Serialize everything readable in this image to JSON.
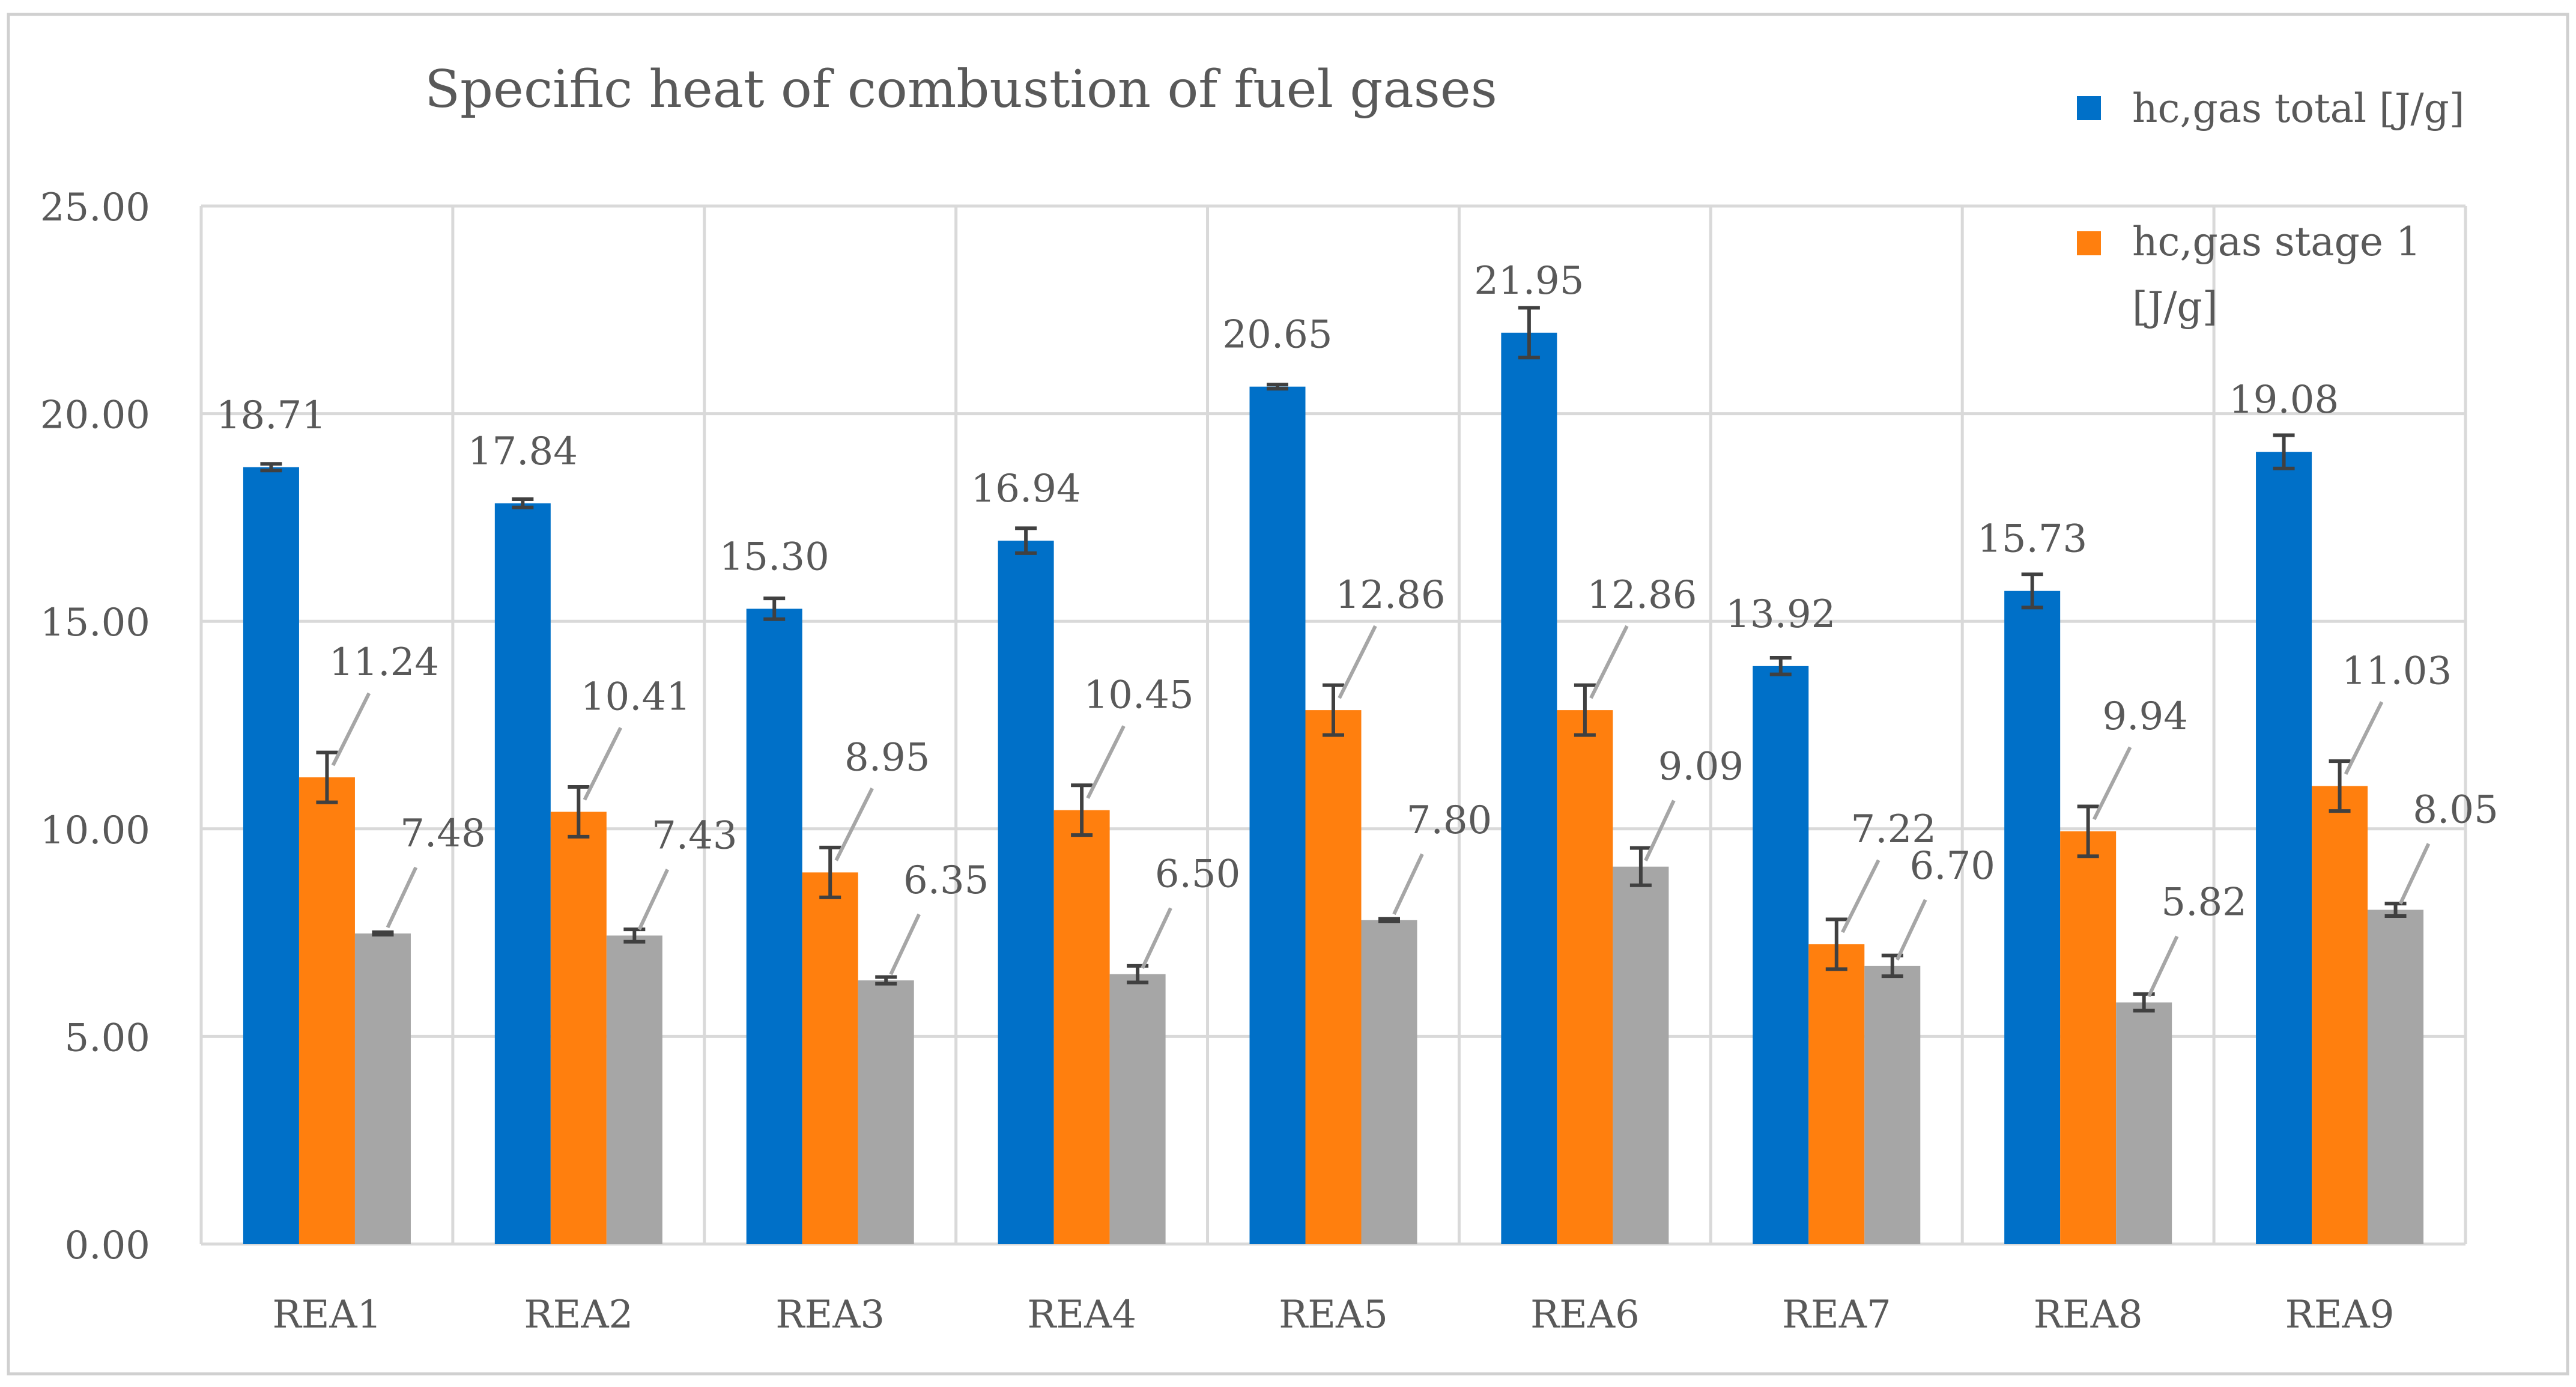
{
  "chart_data": {
    "type": "bar",
    "title": "Specific heat of combustion of fuel gases",
    "xlabel": "",
    "ylabel": "",
    "ylim": [
      0,
      25
    ],
    "yticks": [
      "0.00",
      "5.00",
      "10.00",
      "15.00",
      "20.00",
      "25.00"
    ],
    "grid": true,
    "legend_position": "top-right",
    "categories": [
      "REA1",
      "REA2",
      "REA3",
      "REA4",
      "REA5",
      "REA6",
      "REA7",
      "REA8",
      "REA9"
    ],
    "series": [
      {
        "name": "hc,gas  total [J/g]",
        "color": "#0070C8",
        "values": [
          18.71,
          17.84,
          15.3,
          16.94,
          20.65,
          21.95,
          13.92,
          15.73,
          19.08
        ],
        "labels": [
          "18.71",
          "17.84",
          "15.30",
          "16.94",
          "20.65",
          "21.95",
          "13.92",
          "15.73",
          "19.08"
        ],
        "errors": [
          0.08,
          0.1,
          0.25,
          0.3,
          0.05,
          0.6,
          0.2,
          0.4,
          0.4
        ]
      },
      {
        "name": "hc,gas  stage 1 [J/g]",
        "legend_lines": [
          "hc,gas  stage 1",
          "[J/g]"
        ],
        "color": "#FF7F0E",
        "values": [
          11.24,
          10.41,
          8.95,
          10.45,
          12.86,
          12.86,
          7.22,
          9.94,
          11.03
        ],
        "labels": [
          "11.24",
          "10.41",
          "8.95",
          "10.45",
          "12.86",
          "12.86",
          "7.22",
          "9.94",
          "11.03"
        ],
        "errors": [
          0.6,
          0.6,
          0.6,
          0.6,
          0.6,
          0.6,
          0.6,
          0.6,
          0.6
        ]
      },
      {
        "name": "",
        "color": "#A6A6A6",
        "values": [
          7.48,
          7.43,
          6.35,
          6.5,
          7.8,
          9.09,
          6.7,
          5.82,
          8.05
        ],
        "labels": [
          "7.48",
          "7.43",
          "6.35",
          "6.50",
          "7.80",
          "9.09",
          "6.70",
          "5.82",
          "8.05"
        ],
        "errors": [
          0.03,
          0.15,
          0.08,
          0.2,
          0.03,
          0.45,
          0.25,
          0.2,
          0.15
        ]
      }
    ]
  }
}
